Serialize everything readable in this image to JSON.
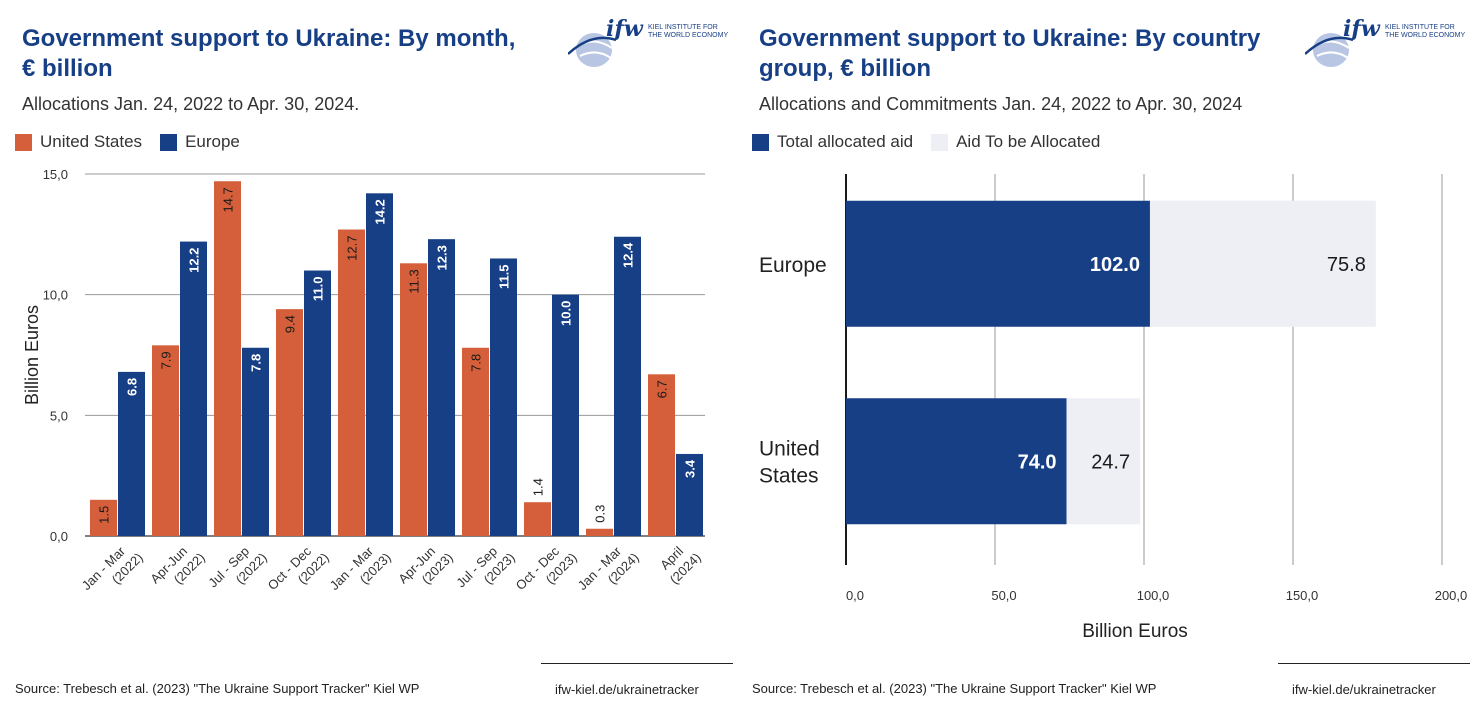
{
  "left_panel": {
    "title": "Government support to Ukraine: By month, € billion",
    "subtitle": "Allocations Jan. 24, 2022 to Apr. 30, 2024.",
    "logo": {
      "mark": "ifw",
      "line1": "KIEL INSTITUTE FOR",
      "line2": "THE WORLD ECONOMY"
    },
    "source": "Source: Trebesch et al. (2023) \"The Ukraine Support Tracker\" Kiel WP",
    "url": "ifw-kiel.de/ukrainetracker"
  },
  "right_panel": {
    "title": "Government support to Ukraine: By country group, € billion",
    "subtitle": "Allocations and Commitments Jan. 24, 2022 to Apr. 30, 2024",
    "logo": {
      "mark": "ifw",
      "line1": "KIEL INSTITUTE FOR",
      "line2": "THE WORLD ECONOMY"
    },
    "source": "Source: Trebesch et al. (2023) \"The Ukraine Support Tracker\" Kiel WP",
    "url": "ifw-kiel.de/ukrainetracker"
  },
  "colors": {
    "united_states": "#d45f3a",
    "europe": "#173f86",
    "to_be_allocated": "#eeeef5",
    "title": "#173f86"
  },
  "chart_data": [
    {
      "type": "bar",
      "orientation": "vertical",
      "title": "Government support to Ukraine: By month, € billion",
      "subtitle": "Allocations Jan. 24, 2022 to Apr. 30, 2024.",
      "ylabel": "Billion Euros",
      "xlabel": "",
      "ylim": [
        0,
        15
      ],
      "yticks": [
        "0,0",
        "5,0",
        "10,0",
        "15,0"
      ],
      "grid": true,
      "legend": "top-left",
      "categories": [
        [
          "Jan - Mar",
          "(2022)"
        ],
        [
          "Apr-Jun",
          "(2022)"
        ],
        [
          "Jul - Sep",
          "(2022)"
        ],
        [
          "Oct - Dec",
          "(2022)"
        ],
        [
          "Jan - Mar",
          "(2023)"
        ],
        [
          "Apr-Jun",
          "(2023)"
        ],
        [
          "Jul - Sep",
          "(2023)"
        ],
        [
          "Oct - Dec",
          "(2023)"
        ],
        [
          "Jan - Mar",
          "(2024)"
        ],
        [
          "April",
          "(2024)"
        ]
      ],
      "series": [
        {
          "name": "United States",
          "color": "#d45f3a",
          "values": [
            1.5,
            7.9,
            14.7,
            9.4,
            12.7,
            11.3,
            7.8,
            1.4,
            0.3,
            6.7
          ],
          "labels": [
            "1.5",
            "7.9",
            "14.7",
            "9.4",
            "12.7",
            "11.3",
            "7.8",
            "1.4",
            "0.3",
            "6.7"
          ]
        },
        {
          "name": "Europe",
          "color": "#173f86",
          "values": [
            6.8,
            12.2,
            7.8,
            11.0,
            14.2,
            12.3,
            11.5,
            10.0,
            12.4,
            3.4
          ],
          "labels": [
            "6.8",
            "12.2",
            "7.8",
            "11.0",
            "14.2",
            "12.3",
            "11.5",
            "10.0",
            "12.4",
            "3.4"
          ]
        }
      ]
    },
    {
      "type": "bar",
      "orientation": "horizontal",
      "stacked": true,
      "title": "Government support to Ukraine: By country group, € billion",
      "subtitle": "Allocations and Commitments Jan. 24, 2022 to Apr. 30, 2024",
      "xlabel": "Billion Euros",
      "ylabel": "",
      "xlim": [
        0,
        200
      ],
      "xticks": [
        "0,0",
        "50,0",
        "100,0",
        "150,0",
        "200,0"
      ],
      "grid": true,
      "legend": "top-left",
      "categories": [
        [
          "Europe"
        ],
        [
          "United",
          "States"
        ]
      ],
      "series": [
        {
          "name": "Total allocated aid",
          "color": "#173f86",
          "values": [
            102.0,
            74.0
          ],
          "labels": [
            "102.0",
            "74.0"
          ]
        },
        {
          "name": "Aid To be Allocated",
          "color": "#eeeef5",
          "values": [
            75.8,
            24.7
          ],
          "labels": [
            "75.8",
            "24.7"
          ]
        }
      ]
    }
  ]
}
